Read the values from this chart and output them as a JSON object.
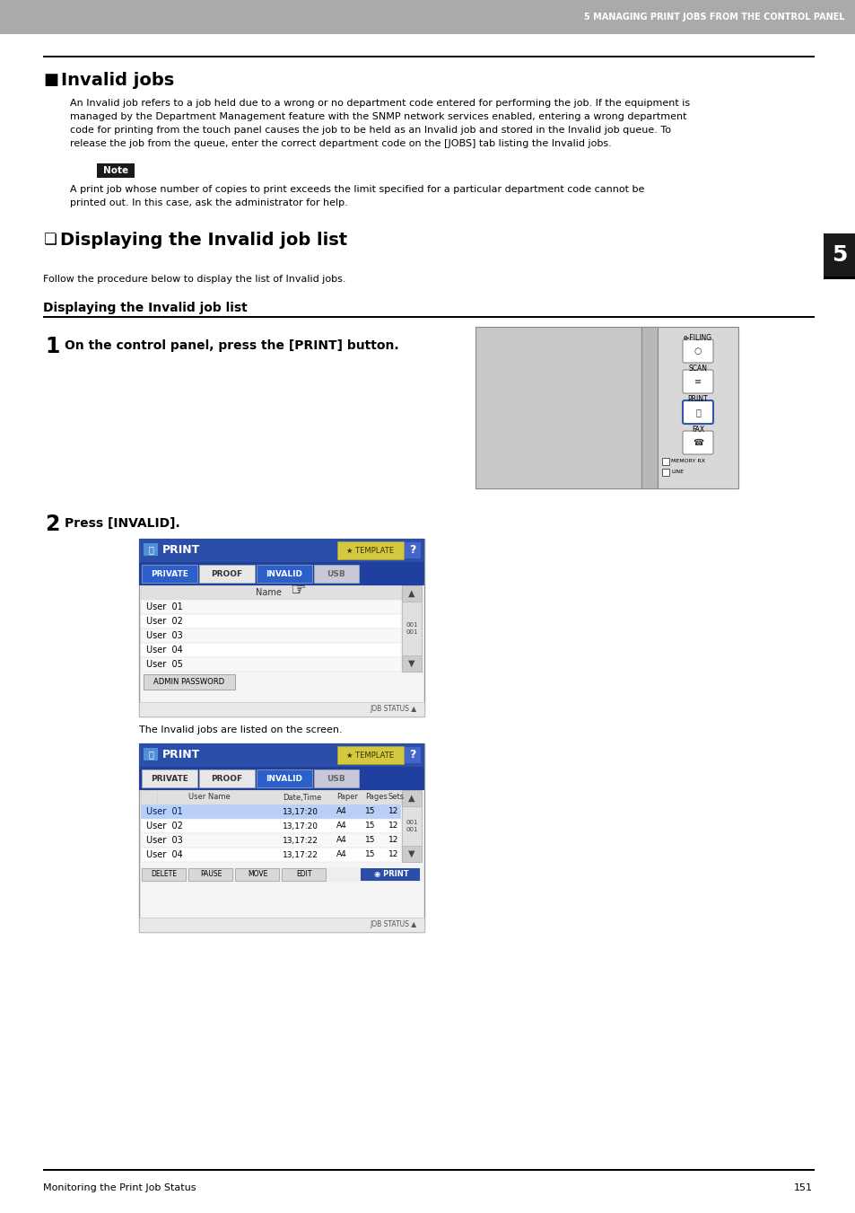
{
  "page_title": "5 MANAGING PRINT JOBS FROM THE CONTROL PANEL",
  "section_title": "Invalid jobs",
  "body_text_lines": [
    "An Invalid job refers to a job held due to a wrong or no department code entered for performing the job. If the equipment is",
    "managed by the Department Management feature with the SNMP network services enabled, entering a wrong department",
    "code for printing from the touch panel causes the job to be held as an Invalid job and stored in the Invalid job queue. To",
    "release the job from the queue, enter the correct department code on the [JOBS] tab listing the Invalid jobs."
  ],
  "note_label": "Note",
  "note_text_lines": [
    "A print job whose number of copies to print exceeds the limit specified for a particular department code cannot be",
    "printed out. In this case, ask the administrator for help."
  ],
  "subsection_title": "Displaying the Invalid job list",
  "subsection_follow": "Follow the procedure below to display the list of Invalid jobs.",
  "procedure_heading": "Displaying the Invalid job list",
  "step1_text": "On the control panel, press the [PRINT] button.",
  "step2_text": "Press [INVALID].",
  "step2_caption": "The Invalid jobs are listed on the screen.",
  "footer_text": "Monitoring the Print Job Status",
  "page_num": "151",
  "header_bg": "#aaaaaa",
  "header_text_color": "#ffffff",
  "sidebar_bg": "#1a1a1a",
  "sidebar_text": "5",
  "note_bg": "#1a1a1a",
  "print_ui_header_bg": "#2b4fa8",
  "print_ui_tab_row_bg": "#2040a0",
  "tab_active_bg": "#2b5fcc",
  "tab_inactive_bg": "#e8e8e8",
  "tab_usb_bg": "#d0d0d8",
  "scroll_bg": "#e8e8e8",
  "row_highlight": "#b8d0f8",
  "row_alt": "#f4f4f4",
  "button_bg": "#d8d8d8",
  "print_btn_bg": "#2b4fa8",
  "template_btn_bg": "#e0e0c0",
  "job_status_bg": "#f0f0f0",
  "panel_bg": "#c8c8c8",
  "panel_right_bg": "#d8d8d8",
  "panel_border": "#888888"
}
